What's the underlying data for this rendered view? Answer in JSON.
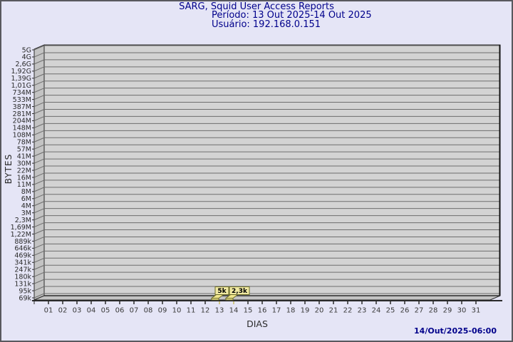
{
  "page": {
    "background_color": "#e5e5f6",
    "border_color": "#59595e"
  },
  "header": {
    "title": "SARG, Squid User Access Reports",
    "period_label": "Período: 13 Out 2025-14 Out 2025",
    "user_label": "Usuário: 192.168.0.151",
    "text_color": "#00008b"
  },
  "footer": {
    "timestamp": "14/Out/2025-06:00",
    "text_color": "#00008b"
  },
  "chart_data": {
    "type": "bar",
    "title": "SARG, Squid User Access Reports",
    "subtitle_period": "Período: 13 Out 2025-14 Out 2025",
    "subtitle_user": "Usuário: 192.168.0.151",
    "xlabel": "DIAS",
    "ylabel": "BYTES",
    "y_scale": "log",
    "grid": true,
    "style": "3d-bar",
    "y_tick_labels": [
      "5G",
      "4G",
      "2,6G",
      "1,92G",
      "1,39G",
      "1,01G",
      "734M",
      "533M",
      "387M",
      "281M",
      "204M",
      "148M",
      "108M",
      "78M",
      "57M",
      "41M",
      "30M",
      "22M",
      "16M",
      "11M",
      "8M",
      "6M",
      "4M",
      "3M",
      "2,3M",
      "1,69M",
      "1,22M",
      "889k",
      "646k",
      "469k",
      "341k",
      "247k",
      "180k",
      "131k",
      "95k",
      "69k"
    ],
    "x_tick_labels": [
      "01",
      "02",
      "03",
      "04",
      "05",
      "06",
      "07",
      "08",
      "09",
      "10",
      "11",
      "12",
      "13",
      "14",
      "15",
      "16",
      "17",
      "18",
      "19",
      "20",
      "21",
      "22",
      "23",
      "24",
      "25",
      "26",
      "27",
      "28",
      "29",
      "30",
      "31"
    ],
    "bars": [
      {
        "day": "13",
        "label": "5k",
        "value_bytes": 5000
      },
      {
        "day": "14",
        "label": "2,3k",
        "value_bytes": 2300
      }
    ],
    "colors": {
      "plot_bg": "#d3d3d3",
      "wall": "#c3c3c3",
      "grid": "#6e6e6e",
      "axis": "#2a2a2a",
      "text": "#2a2a2a",
      "bar_fill": "#f0e68c",
      "bar_stroke": "#6b6b2a",
      "label_box_fill": "#f0e9a2",
      "label_box_stroke": "#6b6b2a"
    }
  }
}
